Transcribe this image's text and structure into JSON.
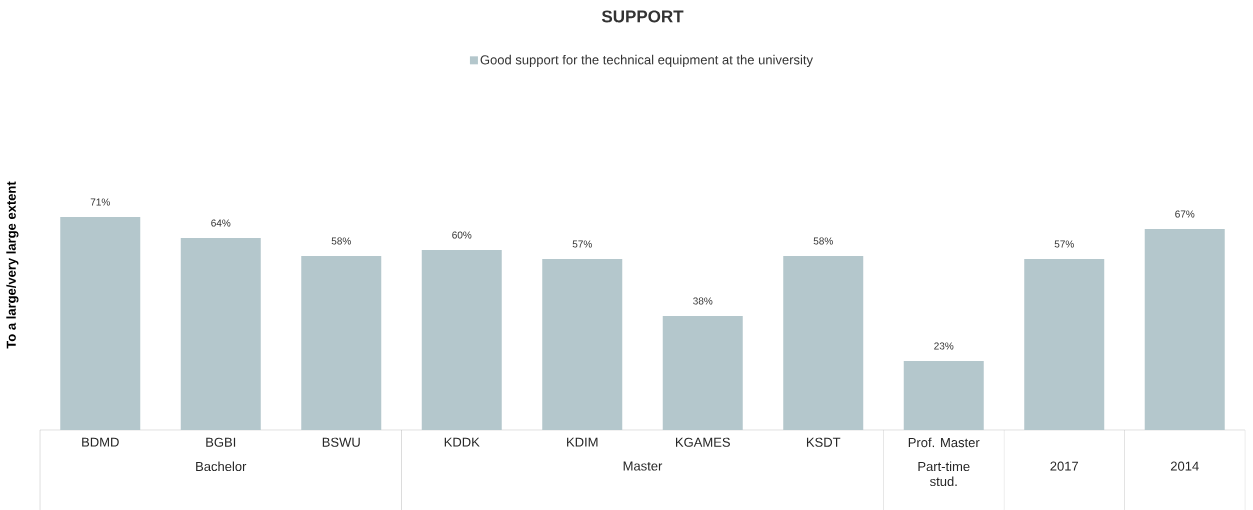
{
  "chart_data": {
    "type": "bar",
    "title": "SUPPORT",
    "ylabel": "To a large/very large extent",
    "categories": [
      "BDMD",
      "BGBI",
      "BSWU",
      "KDDK",
      "KDIM",
      "KGAMES",
      "KSDT",
      "Prof. Master",
      null,
      null
    ],
    "series": [
      {
        "name": "Good support for the technical equipment at the university",
        "color": "#b4c7cc",
        "values": [
          71,
          64,
          58,
          60,
          57,
          38,
          58,
          23,
          57,
          67
        ],
        "value_labels": [
          "71%",
          "64%",
          "58%",
          "60%",
          "57%",
          "38%",
          "58%",
          "23%",
          "57%",
          "67%"
        ]
      }
    ],
    "annotations": [
      "Bachelor",
      "Master",
      "Part-time stud.",
      "2017",
      "2014"
    ],
    "legend": "top"
  }
}
